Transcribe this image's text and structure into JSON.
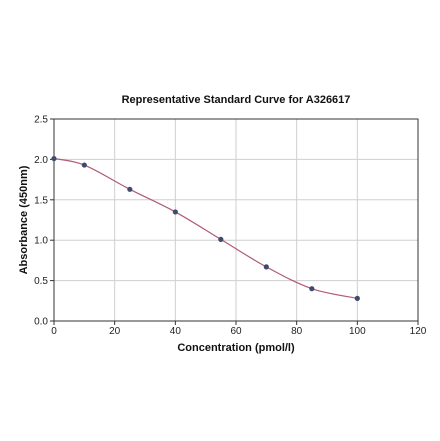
{
  "chart_data": {
    "type": "scatter",
    "title": "Representative Standard Curve for A326617",
    "xlabel": "Concentration (pmol/l)",
    "ylabel": "Absorbance (450nm)",
    "xlim": [
      0,
      120
    ],
    "ylim": [
      0,
      2.5
    ],
    "x_ticks": [
      "0",
      "20",
      "40",
      "60",
      "80",
      "100",
      "120"
    ],
    "y_ticks": [
      "0.0",
      "0.5",
      "1.0",
      "1.5",
      "2.0",
      "2.5"
    ],
    "grid": true,
    "legend": "none",
    "series": [
      {
        "points": [
          {
            "x": 0,
            "y": 2.01
          },
          {
            "x": 10,
            "y": 1.93
          },
          {
            "x": 25,
            "y": 1.63
          },
          {
            "x": 40,
            "y": 1.35
          },
          {
            "x": 55,
            "y": 1.01
          },
          {
            "x": 70,
            "y": 0.67
          },
          {
            "x": 85,
            "y": 0.4
          },
          {
            "x": 100,
            "y": 0.28
          }
        ],
        "fit_curve": true,
        "point_color": "#3f4a6e",
        "curve_color": "#b05a7a"
      }
    ]
  }
}
